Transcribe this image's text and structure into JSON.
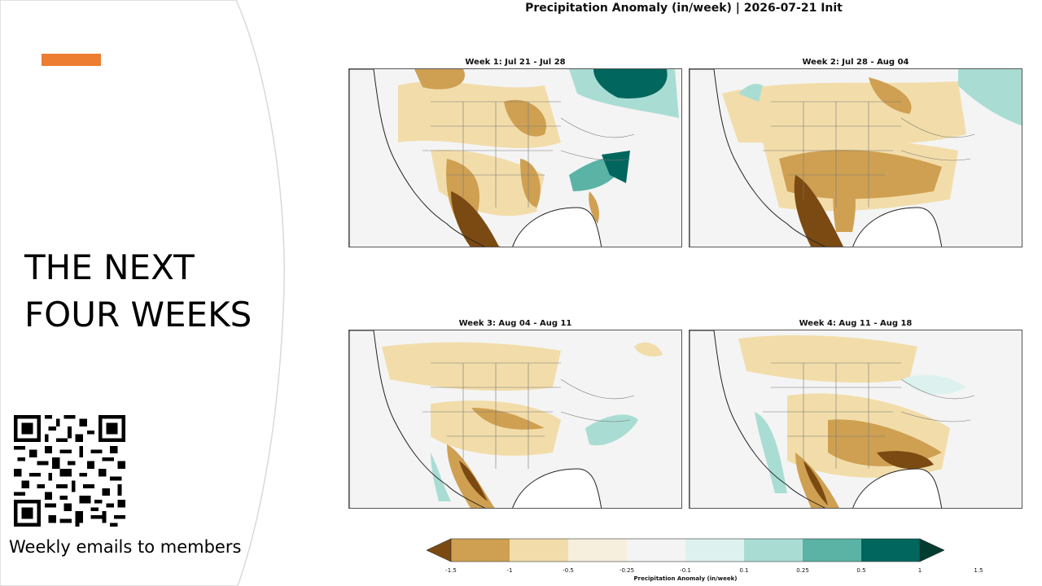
{
  "slide": {
    "title_line1": "THE NEXT",
    "title_line2": "FOUR WEEKS",
    "caption": "Weekly emails to members",
    "accent_color": "#ED7D31",
    "curve_color": "#D9D9D9"
  },
  "figure": {
    "title": "Precipitation Anomaly (in/week) | 2026-07-21 Init",
    "panels": [
      {
        "label": "Week 1: Jul 21 - Jul 28"
      },
      {
        "label": "Week 2: Jul 28 - Aug 04"
      },
      {
        "label": "Week 3: Aug 04 - Aug 11"
      },
      {
        "label": "Week 4: Aug 11 - Aug 18"
      }
    ],
    "colorbar": {
      "label": "Precipitation Anomaly (in/week)",
      "ticks": [
        "-1.5",
        "-1",
        "-0.5",
        "-0.25",
        "-0.1",
        "0.1",
        "0.25",
        "0.5",
        "1",
        "1.5"
      ],
      "colors": [
        "#7B4A12",
        "#CFA052",
        "#F2DDAA",
        "#F7EFDD",
        "#F4F4F4",
        "#DDF2EE",
        "#A9DDD4",
        "#5BB3A6",
        "#01665E",
        "#003C30"
      ]
    }
  },
  "icons": {
    "qr": "qr-code-icon"
  }
}
